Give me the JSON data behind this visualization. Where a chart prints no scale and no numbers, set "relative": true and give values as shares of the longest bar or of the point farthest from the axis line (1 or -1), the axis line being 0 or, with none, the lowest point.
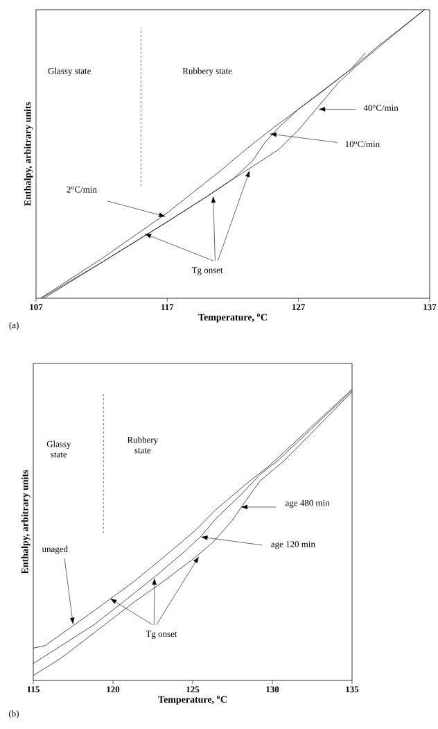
{
  "chart_data": [
    {
      "type": "line",
      "relative": true,
      "xlabel": "Temperature, $^{o}$C",
      "ylabel": "Enthalpy, arbitrary units",
      "xlim": [
        107,
        137
      ],
      "xticks": [
        107,
        117,
        127,
        137
      ],
      "series": [
        {
          "color": "#000000",
          "x": [
            107.35,
            112,
            117,
            119,
            121,
            123,
            125,
            127,
            129,
            131,
            132.1
          ],
          "values": [
            0,
            0.137,
            0.296,
            0.368,
            0.44,
            0.516,
            0.588,
            0.655,
            0.723,
            0.794,
            0.85
          ]
        },
        {
          "color": "#000000",
          "x": [
            107.4,
            112,
            117,
            120,
            122,
            123.5,
            124.5,
            125.5,
            127,
            131,
            133,
            136.6
          ],
          "values": [
            0,
            0.124,
            0.265,
            0.352,
            0.413,
            0.476,
            0.543,
            0.592,
            0.655,
            0.794,
            0.871,
            1
          ]
        },
        {
          "color": "#000000",
          "x": [
            107.6,
            112,
            117,
            120,
            122,
            124,
            125.5,
            127,
            128.5,
            130,
            131.5,
            133,
            136.6
          ],
          "values": [
            0,
            0.124,
            0.265,
            0.352,
            0.413,
            0.471,
            0.516,
            0.583,
            0.664,
            0.745,
            0.808,
            0.866,
            1
          ]
        }
      ],
      "ref_lines": [
        {
          "axis": "x",
          "value": 115,
          "line_style": "dashed"
        }
      ],
      "annotations": [
        "2$^{o}$C/min",
        "10$^{o}$C/min",
        "40$^{o}$C/min",
        "Tg onset",
        "Glassy state",
        "Rubbery state",
        "(a)"
      ]
    },
    {
      "type": "line",
      "relative": true,
      "xlabel": "Temperature, $^{o}$C",
      "ylabel": "Enthalpy, arbitrary units",
      "xlim": [
        115,
        135
      ],
      "xticks": [
        115,
        120,
        125,
        130,
        135
      ],
      "series": [
        {
          "color": "#000000",
          "x": [
            115,
            115.75,
            118.83,
            121.27,
            123.54,
            125.16,
            126.46,
            128.57,
            129.71,
            135
          ],
          "values": [
            0.111,
            0.12,
            0.24,
            0.338,
            0.44,
            0.515,
            0.587,
            0.685,
            0.733,
            1
          ]
        },
        {
          "color": "#000000",
          "x": [
            115,
            118.83,
            121.27,
            122.73,
            124.35,
            125.49,
            126.46,
            128.08,
            129.22,
            130.36,
            135
          ],
          "values": [
            0.058,
            0.192,
            0.297,
            0.361,
            0.436,
            0.493,
            0.556,
            0.641,
            0.707,
            0.756,
            0.996
          ]
        },
        {
          "color": "#000000",
          "x": [
            115,
            116.7,
            118.83,
            121.27,
            123.21,
            125.16,
            126.3,
            127.44,
            128.57,
            129.22,
            130.68,
            135
          ],
          "values": [
            0.017,
            0.075,
            0.164,
            0.267,
            0.342,
            0.423,
            0.476,
            0.547,
            0.636,
            0.685,
            0.752,
            0.991
          ]
        }
      ],
      "ref_lines": [
        {
          "axis": "x",
          "value": 119.4,
          "line_style": "dashed"
        }
      ],
      "annotations": [
        "unaged",
        "age 480 min",
        "age 120 min",
        "Tg onset",
        "Glassy state",
        "Rubbery state",
        "(b)"
      ]
    }
  ]
}
